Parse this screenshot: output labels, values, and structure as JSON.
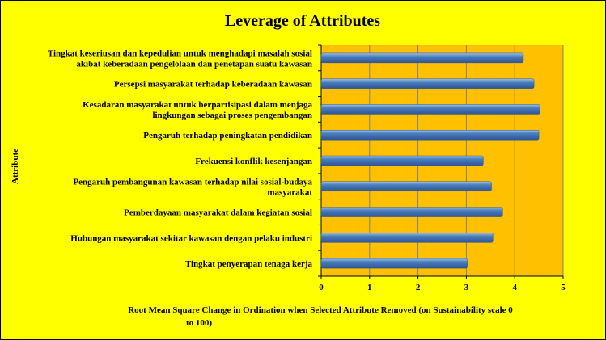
{
  "colors": {
    "background": "#ffff00",
    "plot_area": "#ffc000",
    "bar_light": "#9dc3e6",
    "bar_mid": "#4a7ebb",
    "bar_dark": "#2f5597",
    "gridline": "#808080"
  },
  "chart_data": {
    "type": "bar",
    "orientation": "horizontal",
    "title": "Leverage of Attributes",
    "ylabel": "Attribute",
    "xlabel_line1": "Root Mean Square Change in Ordination when  Selected Attribute  Removed (on Sustainability scale 0",
    "xlabel_line2": "to 100)",
    "xlim": [
      0,
      5
    ],
    "xticks": [
      "0",
      "1",
      "2",
      "3",
      "4",
      "5"
    ],
    "grid": "vertical",
    "categories": [
      [
        "Tingkat keseriusan dan kepedulian untuk menghadapi masalah sosial",
        "akibat keberadaan pengelolaan  dan penetapan suatu kawasan"
      ],
      [
        "Persepsi masyarakat terhadap keberadaan kawasan"
      ],
      [
        "Kesadaran masyarakat untuk berpartisipasi dalam menjaga",
        "lingkungan sebagai proses pengembangan"
      ],
      [
        "Pengaruh terhadap peningkatan pendidikan"
      ],
      [
        "Frekuensi konflik kesenjangan"
      ],
      [
        "Pengaruh pembangunan kawasan terhadap nilai sosial-budaya",
        "masyarakat"
      ],
      [
        "Pemberdayaan masyarakat dalam kegiatan sosial"
      ],
      [
        "Hubungan masyarakat sekitar kawasan dengan pelaku industri"
      ],
      [
        "Tingkat penyerapan tenaga kerja"
      ]
    ],
    "values": [
      4.18,
      4.4,
      4.52,
      4.5,
      3.35,
      3.52,
      3.75,
      3.55,
      3.02
    ]
  }
}
